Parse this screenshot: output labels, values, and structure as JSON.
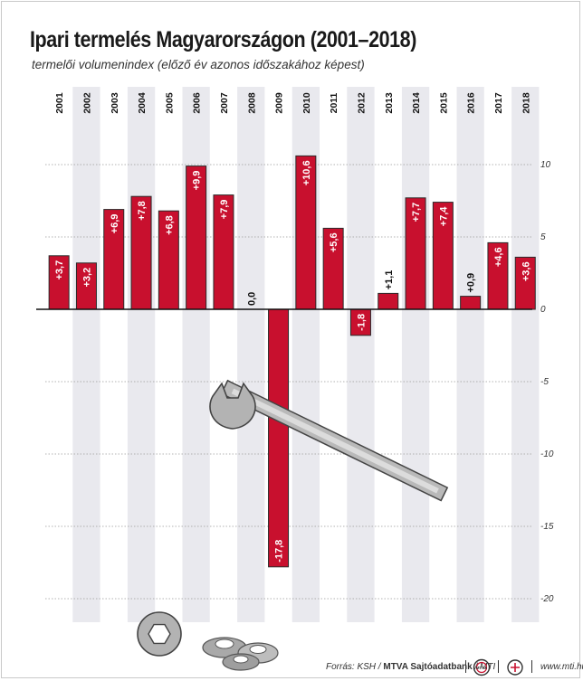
{
  "header": {
    "title": "Ipari termelés Magyarországon (2001–2018)",
    "subtitle": "termelői volumenindex (előző év azonos időszakához képest)"
  },
  "colors": {
    "bar": "#c8102e",
    "bar_stroke": "#2a2a2a",
    "band": "#e9e9ee",
    "zero_line": "#111111"
  },
  "chart_data": {
    "type": "bar",
    "title": "Ipari termelés Magyarországon (2001–2018)",
    "subtitle": "termelői volumenindex (előző év azonos időszakához képest)",
    "xlabel": "",
    "ylabel": "",
    "categories": [
      "2001",
      "2002",
      "2003",
      "2004",
      "2005",
      "2006",
      "2007",
      "2008",
      "2009",
      "2010",
      "2011",
      "2012",
      "2013",
      "2014",
      "2015",
      "2016",
      "2017",
      "2018"
    ],
    "values": [
      3.7,
      3.2,
      6.9,
      7.8,
      6.8,
      9.9,
      7.9,
      0.0,
      -17.8,
      10.6,
      5.6,
      -1.8,
      1.1,
      7.7,
      7.4,
      0.9,
      4.6,
      3.6
    ],
    "value_labels": [
      "+3,7",
      "+3,2",
      "+6,9",
      "+7,8",
      "+6,8",
      "+9,9",
      "+7,9",
      "0,0",
      "-17,8",
      "+10,6",
      "+5,6",
      "-1,8",
      "+1,1",
      "+7,7",
      "+7,4",
      "+0,9",
      "+4,6",
      "+3,6"
    ],
    "ylim": [
      -20,
      12
    ],
    "yticks": [
      10,
      5,
      0,
      -5,
      -10,
      -15,
      -20
    ],
    "ytick_labels": [
      "10",
      "5",
      "0",
      "-5",
      "-10",
      "-15",
      "-20"
    ],
    "grid": true,
    "axis_position": "right"
  },
  "footer": {
    "source_prefix": "Forrás: KSH / ",
    "source_bold": "MTVA Sajtóadatbank",
    "source_suffix": " / MTI",
    "logo1_text": "MTVA",
    "website": "www.mti.hu"
  }
}
